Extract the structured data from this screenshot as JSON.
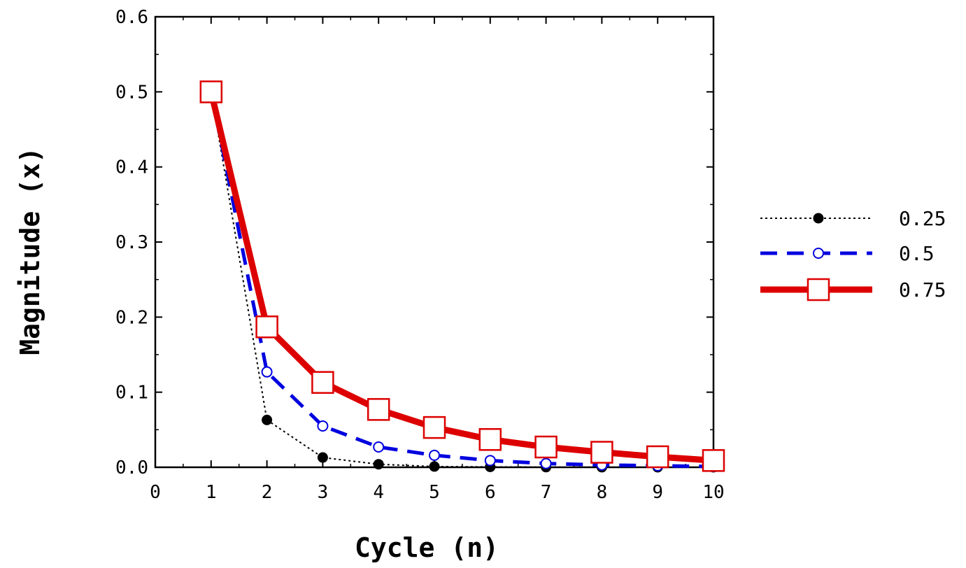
{
  "chart_data": {
    "type": "line",
    "title": "",
    "xlabel": "Cycle (n)",
    "ylabel": "Magnitude (x)",
    "xlim": [
      0,
      10
    ],
    "ylim": [
      0,
      0.6
    ],
    "xticks": [
      "0",
      "1",
      "2",
      "3",
      "4",
      "5",
      "6",
      "7",
      "8",
      "9",
      "10"
    ],
    "yticks": [
      "0.0",
      "0.1",
      "0.2",
      "0.3",
      "0.4",
      "0.5",
      "0.6"
    ],
    "grid": false,
    "legend_position": "right",
    "x": [
      1,
      2,
      3,
      4,
      5,
      6,
      7,
      8,
      9,
      10
    ],
    "series": [
      {
        "name": "0.25",
        "values": [
          0.5,
          0.063,
          0.013,
          0.004,
          0.001,
          0.0005,
          0.0002,
          0.0001,
          0.0,
          0.0
        ],
        "color": "#000000",
        "line_style": "dotted",
        "marker": "filled-circle"
      },
      {
        "name": "0.5",
        "values": [
          0.5,
          0.127,
          0.055,
          0.027,
          0.016,
          0.009,
          0.005,
          0.003,
          0.002,
          0.001
        ],
        "color": "#0000e0",
        "line_style": "dashed",
        "marker": "open-circle"
      },
      {
        "name": "0.75",
        "values": [
          0.5,
          0.187,
          0.113,
          0.077,
          0.053,
          0.037,
          0.027,
          0.02,
          0.014,
          0.009
        ],
        "color": "#dd0000",
        "line_style": "solid",
        "marker": "open-square"
      }
    ]
  }
}
